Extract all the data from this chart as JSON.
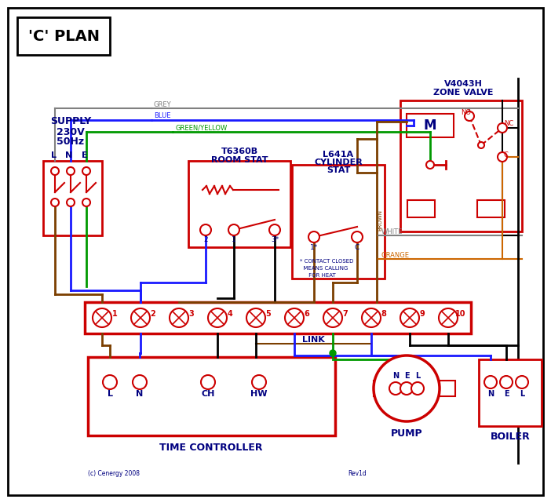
{
  "title": "'C' PLAN",
  "bg": "#ffffff",
  "red": "#cc0000",
  "blue": "#1a1aff",
  "green": "#009900",
  "grey": "#808080",
  "brown": "#7B3F00",
  "orange": "#cc6600",
  "black": "#000000",
  "dkblue": "#000080",
  "supply_text": "SUPPLY\n230V\n50Hz",
  "zone_valve_title": "V4043H\nZONE VALVE",
  "room_stat_title": "T6360B\nROOM STAT",
  "cyl_stat_title": "L641A\nCYLINDER\nSTAT",
  "tc_title": "TIME CONTROLLER",
  "pump_title": "PUMP",
  "boiler_title": "BOILER",
  "link_label": "LINK",
  "copyright": "(c) Cenergy 2008",
  "rev": "Rev1d"
}
